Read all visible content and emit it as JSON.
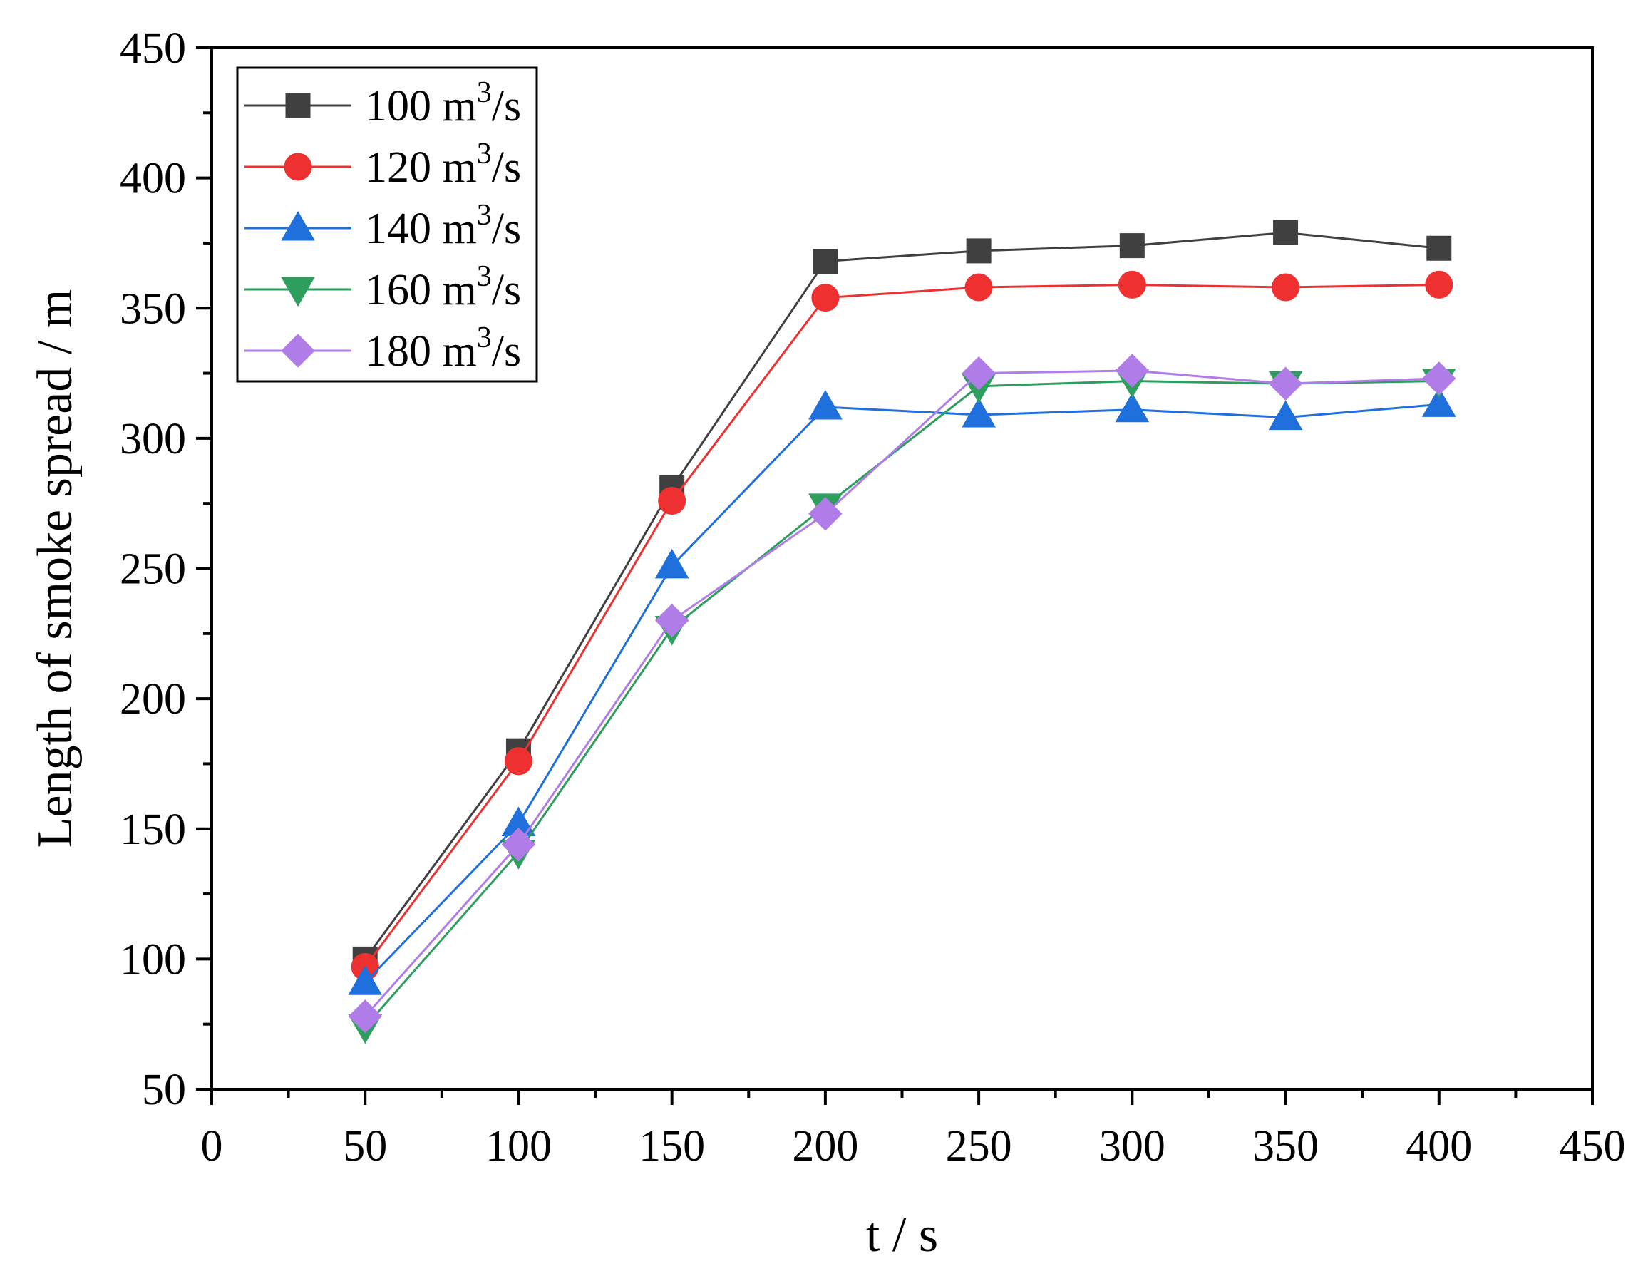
{
  "chart_data": {
    "type": "line",
    "xlabel": "t / s",
    "ylabel": "Length of smoke spread / m",
    "xlim": [
      0,
      450
    ],
    "ylim": [
      50,
      450
    ],
    "xticks": [
      0,
      50,
      100,
      150,
      200,
      250,
      300,
      350,
      400,
      450
    ],
    "yticks": [
      50,
      100,
      150,
      200,
      250,
      300,
      350,
      400,
      450
    ],
    "x": [
      50,
      100,
      150,
      200,
      250,
      300,
      350,
      400
    ],
    "legend_position": "top-left",
    "unit_base": "m",
    "unit_exp": "3",
    "unit_tail": "/s",
    "series": [
      {
        "name": "100",
        "color": "#404040",
        "marker": "square",
        "values": [
          100,
          180,
          281,
          368,
          372,
          374,
          379,
          373
        ]
      },
      {
        "name": "120",
        "color": "#ee3030",
        "marker": "circle",
        "values": [
          97,
          176,
          276,
          354,
          358,
          359,
          358,
          359
        ]
      },
      {
        "name": "140",
        "color": "#1f6fdc",
        "marker": "triangle-up",
        "values": [
          91,
          152,
          251,
          312,
          309,
          311,
          308,
          313
        ]
      },
      {
        "name": "160",
        "color": "#2e9e5e",
        "marker": "triangle-down",
        "values": [
          74,
          141,
          227,
          274,
          320,
          322,
          321,
          322
        ]
      },
      {
        "name": "180",
        "color": "#b07de8",
        "marker": "diamond",
        "values": [
          78,
          144,
          230,
          271,
          325,
          326,
          321,
          323
        ]
      }
    ]
  }
}
